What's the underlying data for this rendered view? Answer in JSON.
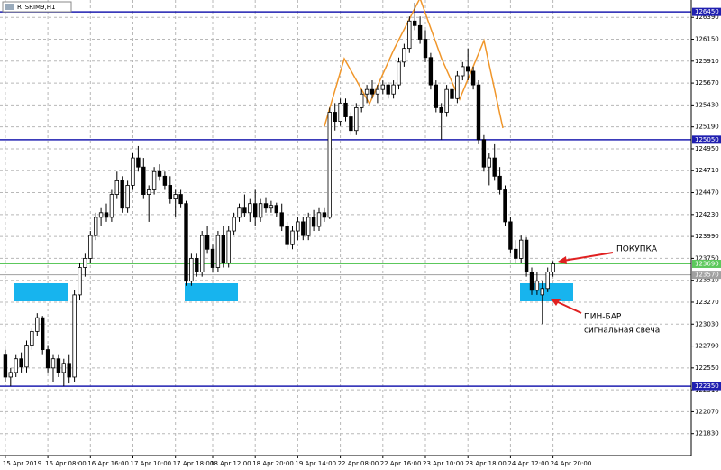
{
  "chart_data": {
    "type": "candlestick",
    "title": "RTSRIM9,H1",
    "ylim": [
      121590,
      126580
    ],
    "yticks": [
      126390,
      126150,
      125910,
      125670,
      125430,
      125190,
      124950,
      124710,
      124470,
      124230,
      123990,
      123750,
      123510,
      123270,
      123030,
      122790,
      122550,
      122310,
      122070,
      121830
    ],
    "xlim": [
      -1,
      129
    ],
    "xticks": [
      {
        "value": 0,
        "label": "15 Apr 2019"
      },
      {
        "value": 8,
        "label": "16 Apr 08:00"
      },
      {
        "value": 16,
        "label": "16 Apr 16:00"
      },
      {
        "value": 24,
        "label": "17 Apr 10:00"
      },
      {
        "value": 32,
        "label": "17 Apr 18:00"
      },
      {
        "value": 39,
        "label": "18 Apr 12:00"
      },
      {
        "value": 47,
        "label": "18 Apr 20:00"
      },
      {
        "value": 55,
        "label": "19 Apr 14:00"
      },
      {
        "value": 63,
        "label": "22 Apr 08:00"
      },
      {
        "value": 71,
        "label": "22 Apr 16:00"
      },
      {
        "value": 79,
        "label": "23 Apr 10:00"
      },
      {
        "value": 87,
        "label": "23 Apr 18:00"
      },
      {
        "value": 95,
        "label": "24 Apr 12:00"
      },
      {
        "value": 103,
        "label": "24 Apr 20:00"
      }
    ],
    "grid": true,
    "levels": [
      {
        "value": 126450,
        "color": "#1f1fb0"
      },
      {
        "value": 125050,
        "color": "#1f1fb0"
      },
      {
        "value": 123690,
        "color": "#5cc85c"
      },
      {
        "value": 123570,
        "color": "#a0a0a0"
      },
      {
        "value": 122350,
        "color": "#1f1fb0"
      }
    ],
    "ohlc": [
      [
        122700,
        122750,
        122400,
        122450
      ],
      [
        122450,
        122550,
        122350,
        122500
      ],
      [
        122500,
        122700,
        122450,
        122650
      ],
      [
        122650,
        122720,
        122500,
        122560
      ],
      [
        122560,
        122850,
        122500,
        122800
      ],
      [
        122800,
        122980,
        122750,
        122950
      ],
      [
        122950,
        123150,
        122900,
        123100
      ],
      [
        123100,
        123120,
        122700,
        122750
      ],
      [
        122750,
        122800,
        122500,
        122550
      ],
      [
        122550,
        122700,
        122400,
        122650
      ],
      [
        122650,
        122700,
        122450,
        122500
      ],
      [
        122500,
        122650,
        122350,
        122600
      ],
      [
        122600,
        122700,
        122380,
        122450
      ],
      [
        122450,
        123400,
        122400,
        123350
      ],
      [
        123350,
        123700,
        123300,
        123650
      ],
      [
        123650,
        123800,
        123550,
        123750
      ],
      [
        123750,
        124050,
        123700,
        124000
      ],
      [
        124000,
        124250,
        123950,
        124200
      ],
      [
        124200,
        124300,
        124100,
        124250
      ],
      [
        124250,
        124350,
        124150,
        124200
      ],
      [
        124200,
        124500,
        124150,
        124450
      ],
      [
        124450,
        124700,
        124400,
        124600
      ],
      [
        124600,
        124650,
        124250,
        124300
      ],
      [
        124300,
        124600,
        124250,
        124550
      ],
      [
        124550,
        124900,
        124500,
        124850
      ],
      [
        124850,
        124980,
        124700,
        124750
      ],
      [
        124750,
        124850,
        124400,
        124450
      ],
      [
        124450,
        124550,
        124150,
        124500
      ],
      [
        124500,
        124750,
        124450,
        124700
      ],
      [
        124700,
        124780,
        124600,
        124650
      ],
      [
        124650,
        124700,
        124500,
        124550
      ],
      [
        124550,
        124650,
        124350,
        124400
      ],
      [
        124400,
        124500,
        124200,
        124450
      ],
      [
        124450,
        124500,
        124300,
        124350
      ],
      [
        124350,
        124380,
        123450,
        123500
      ],
      [
        123500,
        123800,
        123450,
        123750
      ],
      [
        123750,
        123800,
        123550,
        123600
      ],
      [
        123600,
        124050,
        123550,
        124000
      ],
      [
        124000,
        124100,
        123800,
        123850
      ],
      [
        123850,
        123900,
        123600,
        123650
      ],
      [
        123650,
        124050,
        123600,
        124000
      ],
      [
        124000,
        124100,
        123650,
        123700
      ],
      [
        123700,
        124100,
        123650,
        124050
      ],
      [
        124050,
        124250,
        124000,
        124200
      ],
      [
        124200,
        124350,
        124150,
        124300
      ],
      [
        124300,
        124450,
        124200,
        124250
      ],
      [
        124250,
        124400,
        124150,
        124350
      ],
      [
        124350,
        124500,
        124100,
        124200
      ],
      [
        124200,
        124400,
        124150,
        124350
      ],
      [
        124350,
        124420,
        124250,
        124300
      ],
      [
        124300,
        124380,
        124250,
        124330
      ],
      [
        124330,
        124360,
        124200,
        124250
      ],
      [
        124250,
        124350,
        124050,
        124100
      ],
      [
        124100,
        124150,
        123850,
        123900
      ],
      [
        123900,
        124100,
        123850,
        124050
      ],
      [
        124050,
        124200,
        123950,
        124150
      ],
      [
        124150,
        124200,
        123950,
        124000
      ],
      [
        124000,
        124250,
        123950,
        124200
      ],
      [
        124200,
        124280,
        124050,
        124100
      ],
      [
        124100,
        124300,
        124050,
        124250
      ],
      [
        124250,
        124300,
        124150,
        124200
      ],
      [
        124200,
        125400,
        124180,
        125350
      ],
      [
        125350,
        125450,
        125150,
        125250
      ],
      [
        125250,
        125500,
        125200,
        125450
      ],
      [
        125450,
        125500,
        125250,
        125300
      ],
      [
        125300,
        125350,
        125100,
        125150
      ],
      [
        125150,
        125450,
        125100,
        125400
      ],
      [
        125400,
        125600,
        125350,
        125550
      ],
      [
        125550,
        125650,
        125450,
        125600
      ],
      [
        125600,
        125700,
        125500,
        125550
      ],
      [
        125550,
        125650,
        125450,
        125600
      ],
      [
        125600,
        125700,
        125550,
        125650
      ],
      [
        125650,
        125680,
        125500,
        125550
      ],
      [
        125550,
        125700,
        125500,
        125650
      ],
      [
        125650,
        125950,
        125600,
        125900
      ],
      [
        125900,
        126100,
        125850,
        126050
      ],
      [
        126050,
        126400,
        126000,
        126350
      ],
      [
        126350,
        126550,
        126250,
        126300
      ],
      [
        126300,
        126400,
        126100,
        126150
      ],
      [
        126150,
        126250,
        125900,
        125950
      ],
      [
        125950,
        126000,
        125600,
        125650
      ],
      [
        125650,
        125700,
        125350,
        125400
      ],
      [
        125400,
        125450,
        125050,
        125350
      ],
      [
        125350,
        125650,
        125300,
        125600
      ],
      [
        125600,
        125700,
        125450,
        125500
      ],
      [
        125500,
        125800,
        125450,
        125750
      ],
      [
        125750,
        125900,
        125700,
        125850
      ],
      [
        125850,
        126050,
        125700,
        125800
      ],
      [
        125800,
        125850,
        125600,
        125650
      ],
      [
        125650,
        125700,
        125000,
        125050
      ],
      [
        125050,
        125100,
        124700,
        124750
      ],
      [
        124750,
        124900,
        124550,
        124850
      ],
      [
        124850,
        125000,
        124600,
        124650
      ],
      [
        124650,
        124750,
        124450,
        124500
      ],
      [
        124500,
        124550,
        124100,
        124150
      ],
      [
        124150,
        124200,
        123800,
        123850
      ],
      [
        123850,
        123950,
        123700,
        123750
      ],
      [
        123750,
        124000,
        123700,
        123950
      ],
      [
        123950,
        123980,
        123550,
        123600
      ],
      [
        123600,
        123650,
        123350,
        123400
      ],
      [
        123400,
        123600,
        123350,
        123500
      ],
      [
        123350,
        123500,
        123030,
        123420
      ],
      [
        123420,
        123650,
        123380,
        123600
      ],
      [
        123600,
        123720,
        123550,
        123690
      ]
    ],
    "annotations": {
      "buy": "ПОКУПКА",
      "pinbar": "ПИН-БАР",
      "signal": "сигнальная свеча"
    }
  }
}
